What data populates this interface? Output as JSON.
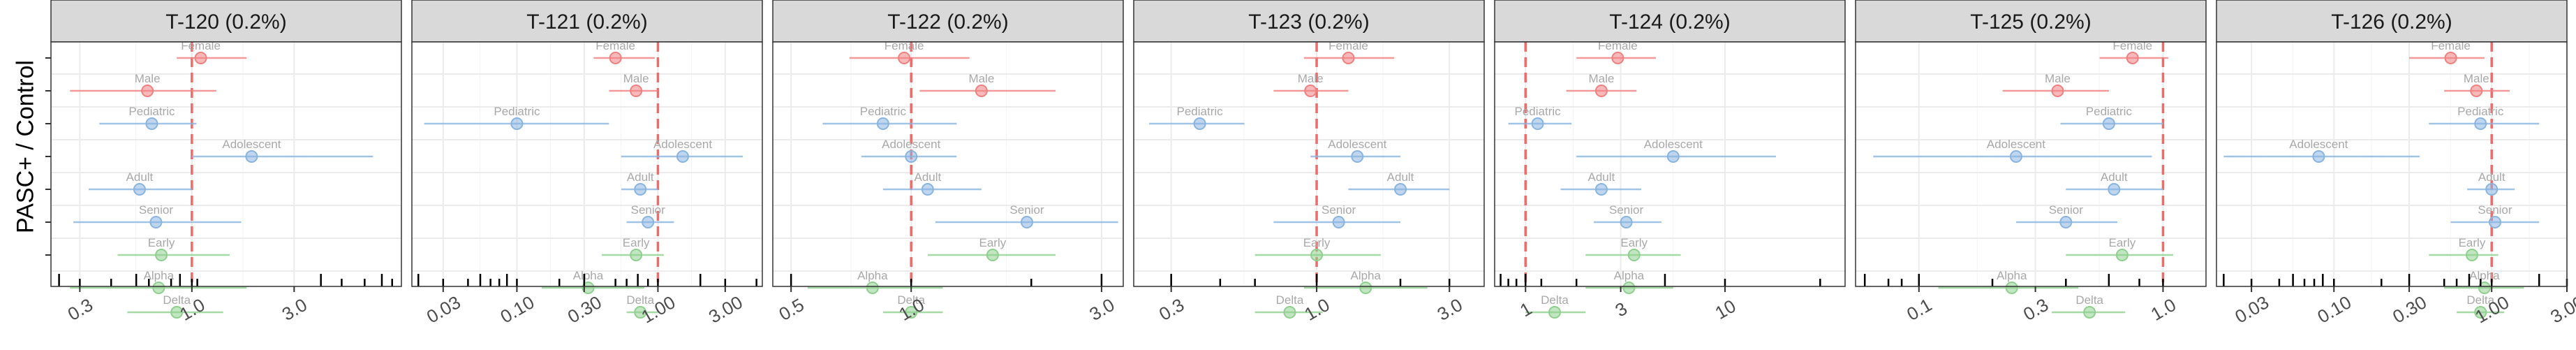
{
  "figure": {
    "ylabel": "PASC+ / Control"
  },
  "style": {
    "female_male_color": "#f08080",
    "demo_color": "#8ab4e0",
    "variant_color": "#8fd08f",
    "label_color": "#a8a8a8",
    "ref_line_color": "#f06a6a",
    "strip_fill": "#d9d9d9",
    "grid_color": "#ebebeb"
  },
  "chart_data": [
    {
      "type": "forest",
      "title": "T-120 (0.2%)",
      "xscale": "log",
      "xlim": [
        0.22,
        9.5
      ],
      "xticks": [
        "0.3",
        "1.0",
        "3.0"
      ],
      "xtick_values": [
        0.3,
        1.0,
        3.0
      ],
      "rug": [
        0.24,
        0.3,
        0.42,
        0.55,
        0.63,
        0.8,
        0.88,
        1.0,
        1.06,
        4.0,
        5.0,
        6.4,
        7.7,
        8.6
      ],
      "points": [
        {
          "label": "Female",
          "group": "sex",
          "est": 1.1,
          "lo": 0.85,
          "hi": 1.8
        },
        {
          "label": "Male",
          "group": "sex",
          "est": 0.62,
          "lo": 0.27,
          "hi": 1.3
        },
        {
          "label": "Pediatric",
          "group": "age",
          "est": 0.65,
          "lo": 0.37,
          "hi": 1.05
        },
        {
          "label": "Adolescent",
          "group": "age",
          "est": 1.9,
          "lo": 1.0,
          "hi": 7.0
        },
        {
          "label": "Adult",
          "group": "age",
          "est": 0.57,
          "lo": 0.33,
          "hi": 1.0
        },
        {
          "label": "Senior",
          "group": "age",
          "est": 0.68,
          "lo": 0.28,
          "hi": 1.7
        },
        {
          "label": "Early",
          "group": "variant",
          "est": 0.72,
          "lo": 0.45,
          "hi": 1.5
        },
        {
          "label": "Alpha",
          "group": "variant",
          "est": 0.7,
          "lo": 0.27,
          "hi": 1.8
        },
        {
          "label": "Delta",
          "group": "variant",
          "est": 0.85,
          "lo": 0.5,
          "hi": 1.4
        }
      ]
    },
    {
      "type": "forest",
      "title": "T-121 (0.2%)",
      "xscale": "log",
      "xlim": [
        0.018,
        5.5
      ],
      "xticks": [
        "0.03",
        "0.10",
        "0.30",
        "1.00",
        "3.00"
      ],
      "xtick_values": [
        0.03,
        0.1,
        0.3,
        1.0,
        3.0
      ],
      "rug": [
        0.02,
        0.03,
        0.045,
        0.055,
        0.065,
        0.075,
        0.085,
        0.1,
        0.2,
        0.3,
        0.5,
        0.6,
        0.72,
        0.85,
        1.0,
        2.0,
        3.0,
        5.0
      ],
      "points": [
        {
          "label": "Female",
          "group": "sex",
          "est": 0.5,
          "lo": 0.35,
          "hi": 0.95
        },
        {
          "label": "Male",
          "group": "sex",
          "est": 0.7,
          "lo": 0.45,
          "hi": 1.0
        },
        {
          "label": "Pediatric",
          "group": "age",
          "est": 0.1,
          "lo": 0.022,
          "hi": 0.45
        },
        {
          "label": "Adolescent",
          "group": "age",
          "est": 1.5,
          "lo": 0.55,
          "hi": 4.0
        },
        {
          "label": "Adult",
          "group": "age",
          "est": 0.75,
          "lo": 0.55,
          "hi": 1.0
        },
        {
          "label": "Senior",
          "group": "age",
          "est": 0.85,
          "lo": 0.6,
          "hi": 1.3
        },
        {
          "label": "Early",
          "group": "variant",
          "est": 0.7,
          "lo": 0.4,
          "hi": 1.1
        },
        {
          "label": "Alpha",
          "group": "variant",
          "est": 0.32,
          "lo": 0.15,
          "hi": 0.8
        },
        {
          "label": "Delta",
          "group": "variant",
          "est": 0.75,
          "lo": 0.6,
          "hi": 1.0
        }
      ]
    },
    {
      "type": "forest",
      "title": "T-122 (0.2%)",
      "xscale": "log",
      "xlim": [
        0.45,
        3.4
      ],
      "xticks": [
        "0.5",
        "1.0",
        "3.0"
      ],
      "xtick_values": [
        0.5,
        1.0,
        3.0
      ],
      "rug": [
        0.5,
        1.0,
        2.0,
        3.0
      ],
      "points": [
        {
          "label": "Female",
          "group": "sex",
          "est": 0.96,
          "lo": 0.7,
          "hi": 1.4
        },
        {
          "label": "Male",
          "group": "sex",
          "est": 1.5,
          "lo": 1.05,
          "hi": 2.3
        },
        {
          "label": "Pediatric",
          "group": "age",
          "est": 0.85,
          "lo": 0.6,
          "hi": 1.3
        },
        {
          "label": "Adolescent",
          "group": "age",
          "est": 1.0,
          "lo": 0.75,
          "hi": 1.3
        },
        {
          "label": "Adult",
          "group": "age",
          "est": 1.1,
          "lo": 0.85,
          "hi": 1.5
        },
        {
          "label": "Senior",
          "group": "age",
          "est": 1.95,
          "lo": 1.15,
          "hi": 3.3
        },
        {
          "label": "Early",
          "group": "variant",
          "est": 1.6,
          "lo": 1.1,
          "hi": 2.3
        },
        {
          "label": "Alpha",
          "group": "variant",
          "est": 0.8,
          "lo": 0.55,
          "hi": 1.2
        },
        {
          "label": "Delta",
          "group": "variant",
          "est": 1.0,
          "lo": 0.85,
          "hi": 1.2
        }
      ]
    },
    {
      "type": "forest",
      "title": "T-123 (0.2%)",
      "xscale": "log",
      "xlim": [
        0.22,
        4.0
      ],
      "xticks": [
        "0.3",
        "1.0",
        "3.0"
      ],
      "xtick_values": [
        0.3,
        1.0,
        3.0
      ],
      "rug": [
        0.3,
        0.45,
        0.6,
        1.0,
        2.0,
        3.0
      ],
      "points": [
        {
          "label": "Female",
          "group": "sex",
          "est": 1.3,
          "lo": 0.9,
          "hi": 1.9
        },
        {
          "label": "Male",
          "group": "sex",
          "est": 0.95,
          "lo": 0.7,
          "hi": 1.3
        },
        {
          "label": "Pediatric",
          "group": "age",
          "est": 0.38,
          "lo": 0.25,
          "hi": 0.55
        },
        {
          "label": "Adolescent",
          "group": "age",
          "est": 1.4,
          "lo": 0.95,
          "hi": 2.0
        },
        {
          "label": "Adult",
          "group": "age",
          "est": 2.0,
          "lo": 1.3,
          "hi": 3.0
        },
        {
          "label": "Senior",
          "group": "age",
          "est": 1.2,
          "lo": 0.7,
          "hi": 2.0
        },
        {
          "label": "Early",
          "group": "variant",
          "est": 1.0,
          "lo": 0.6,
          "hi": 1.7
        },
        {
          "label": "Alpha",
          "group": "variant",
          "est": 1.5,
          "lo": 0.9,
          "hi": 2.5
        },
        {
          "label": "Delta",
          "group": "variant",
          "est": 0.8,
          "lo": 0.6,
          "hi": 1.05
        }
      ]
    },
    {
      "type": "forest",
      "title": "T-124 (0.2%)",
      "xscale": "log",
      "xlim": [
        0.7,
        40
      ],
      "xticks": [
        "1",
        "3",
        "10"
      ],
      "xtick_values": [
        1,
        3,
        10
      ],
      "rug": [
        0.75,
        0.82,
        0.9,
        1.0,
        1.2,
        1.8,
        5.0,
        10,
        30
      ],
      "points": [
        {
          "label": "Female",
          "group": "sex",
          "est": 2.9,
          "lo": 1.8,
          "hi": 4.5
        },
        {
          "label": "Male",
          "group": "sex",
          "est": 2.4,
          "lo": 1.6,
          "hi": 3.6
        },
        {
          "label": "Pediatric",
          "group": "age",
          "est": 1.15,
          "lo": 0.82,
          "hi": 1.7
        },
        {
          "label": "Adolescent",
          "group": "age",
          "est": 5.5,
          "lo": 1.8,
          "hi": 18.0
        },
        {
          "label": "Adult",
          "group": "age",
          "est": 2.4,
          "lo": 1.5,
          "hi": 3.8
        },
        {
          "label": "Senior",
          "group": "age",
          "est": 3.2,
          "lo": 2.2,
          "hi": 4.8
        },
        {
          "label": "Early",
          "group": "variant",
          "est": 3.5,
          "lo": 2.0,
          "hi": 6.0
        },
        {
          "label": "Alpha",
          "group": "variant",
          "est": 3.3,
          "lo": 2.0,
          "hi": 5.5
        },
        {
          "label": "Delta",
          "group": "variant",
          "est": 1.4,
          "lo": 1.0,
          "hi": 2.0
        }
      ]
    },
    {
      "type": "forest",
      "title": "T-125 (0.2%)",
      "xscale": "log",
      "xlim": [
        0.055,
        1.5
      ],
      "xticks": [
        "0.1",
        "0.3",
        "1.0"
      ],
      "xtick_values": [
        0.1,
        0.3,
        1.0
      ],
      "rug": [
        0.06,
        0.075,
        0.085,
        0.1,
        0.2,
        0.4,
        0.6,
        0.8,
        1.0
      ],
      "points": [
        {
          "label": "Female",
          "group": "sex",
          "est": 0.75,
          "lo": 0.55,
          "hi": 1.05
        },
        {
          "label": "Male",
          "group": "sex",
          "est": 0.37,
          "lo": 0.22,
          "hi": 0.6
        },
        {
          "label": "Pediatric",
          "group": "age",
          "est": 0.6,
          "lo": 0.38,
          "hi": 1.0
        },
        {
          "label": "Adolescent",
          "group": "age",
          "est": 0.25,
          "lo": 0.065,
          "hi": 0.9
        },
        {
          "label": "Adult",
          "group": "age",
          "est": 0.63,
          "lo": 0.4,
          "hi": 1.0
        },
        {
          "label": "Senior",
          "group": "age",
          "est": 0.4,
          "lo": 0.25,
          "hi": 0.65
        },
        {
          "label": "Early",
          "group": "variant",
          "est": 0.68,
          "lo": 0.4,
          "hi": 1.1
        },
        {
          "label": "Alpha",
          "group": "variant",
          "est": 0.24,
          "lo": 0.12,
          "hi": 0.45
        },
        {
          "label": "Delta",
          "group": "variant",
          "est": 0.5,
          "lo": 0.35,
          "hi": 0.7
        }
      ]
    },
    {
      "type": "forest",
      "title": "T-126 (0.2%)",
      "xscale": "log",
      "xlim": [
        0.018,
        3.0
      ],
      "xticks": [
        "0.03",
        "0.10",
        "0.30",
        "1.00",
        "3.00"
      ],
      "xtick_values": [
        0.03,
        0.1,
        0.3,
        1.0,
        3.0
      ],
      "rug": [
        0.02,
        0.03,
        0.045,
        0.055,
        0.065,
        0.075,
        0.085,
        0.1,
        0.2,
        0.3,
        0.5,
        0.6,
        0.72,
        0.85,
        1.0,
        2.0,
        3.0
      ],
      "points": [
        {
          "label": "Female",
          "group": "sex",
          "est": 0.55,
          "lo": 0.3,
          "hi": 0.9
        },
        {
          "label": "Male",
          "group": "sex",
          "est": 0.8,
          "lo": 0.5,
          "hi": 1.3
        },
        {
          "label": "Pediatric",
          "group": "age",
          "est": 0.85,
          "lo": 0.4,
          "hi": 2.0
        },
        {
          "label": "Adolescent",
          "group": "age",
          "est": 0.08,
          "lo": 0.02,
          "hi": 0.35
        },
        {
          "label": "Adult",
          "group": "age",
          "est": 1.0,
          "lo": 0.7,
          "hi": 1.4
        },
        {
          "label": "Senior",
          "group": "age",
          "est": 1.05,
          "lo": 0.55,
          "hi": 2.0
        },
        {
          "label": "Early",
          "group": "variant",
          "est": 0.75,
          "lo": 0.4,
          "hi": 1.1
        },
        {
          "label": "Alpha",
          "group": "variant",
          "est": 0.9,
          "lo": 0.5,
          "hi": 1.6
        },
        {
          "label": "Delta",
          "group": "variant",
          "est": 0.85,
          "lo": 0.6,
          "hi": 1.2
        }
      ]
    }
  ]
}
